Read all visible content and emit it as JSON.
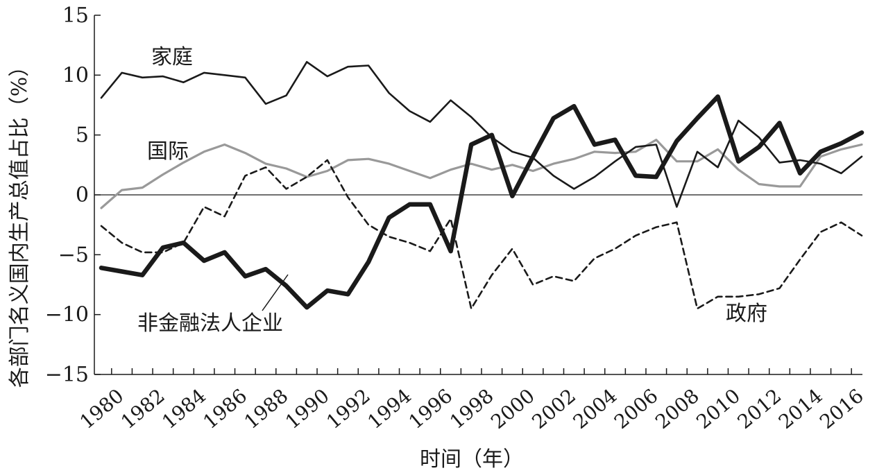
{
  "chart_data": {
    "type": "line",
    "title": "",
    "xlabel": "时间（年）",
    "ylabel": "各部门名义国内生产总值占比（%）",
    "ylim": [
      -15,
      15
    ],
    "xlim": [
      1979.5,
      2017
    ],
    "yticks": [
      15,
      10,
      5,
      0,
      -5,
      -10,
      -15
    ],
    "ytick_labels": [
      "15",
      "10",
      "5",
      "0",
      "−5",
      "−10",
      "−15"
    ],
    "xtick_labels": [
      "1980",
      "1982",
      "1984",
      "1986",
      "1988",
      "1990",
      "1992",
      "1994",
      "1996",
      "1998",
      "2000",
      "2002",
      "2004",
      "2006",
      "2008",
      "2010",
      "2012",
      "2014",
      "2016"
    ],
    "grid": false,
    "zero_line": true,
    "x": [
      1980,
      1981,
      1982,
      1983,
      1984,
      1985,
      1986,
      1987,
      1988,
      1989,
      1990,
      1991,
      1992,
      1993,
      1994,
      1995,
      1996,
      1997,
      1998,
      1999,
      2000,
      2001,
      2002,
      2003,
      2004,
      2005,
      2006,
      2007,
      2008,
      2009,
      2010,
      2011,
      2012,
      2013,
      2014,
      2015,
      2016,
      2017
    ],
    "series": [
      {
        "name": "家庭",
        "style": "thin-solid",
        "color": "#1a1a1a",
        "values": [
          8.1,
          10.2,
          9.8,
          9.9,
          9.4,
          10.2,
          10.0,
          9.8,
          7.6,
          8.3,
          11.1,
          9.9,
          10.7,
          10.8,
          8.5,
          7.0,
          6.1,
          7.9,
          6.5,
          4.8,
          3.6,
          3.1,
          1.6,
          0.5,
          1.5,
          2.8,
          4.0,
          4.2,
          -1.0,
          3.6,
          2.3,
          6.2,
          4.8,
          2.7,
          2.9,
          2.6,
          1.8,
          3.2
        ]
      },
      {
        "name": "国际",
        "style": "gray-solid",
        "color": "#999999",
        "values": [
          -1.1,
          0.4,
          0.6,
          1.7,
          2.7,
          3.6,
          4.2,
          3.5,
          2.6,
          2.2,
          1.5,
          2.0,
          2.9,
          3.0,
          2.6,
          2.0,
          1.4,
          2.1,
          2.6,
          2.1,
          2.5,
          2.0,
          2.6,
          3.0,
          3.6,
          3.5,
          3.6,
          4.6,
          2.8,
          2.8,
          3.8,
          2.1,
          0.9,
          0.7,
          0.7,
          3.2,
          3.8,
          4.2
        ]
      },
      {
        "name": "非金融法人企业",
        "style": "thick-solid",
        "color": "#1a1a1a",
        "values": [
          -6.1,
          -6.4,
          -6.7,
          -4.4,
          -4.0,
          -5.5,
          -4.8,
          -6.8,
          -6.2,
          -7.6,
          -9.4,
          -8.0,
          -8.3,
          -5.6,
          -1.9,
          -0.8,
          -0.8,
          -4.7,
          4.2,
          5.0,
          -0.1,
          3.2,
          6.4,
          7.4,
          4.2,
          4.6,
          1.6,
          1.5,
          4.5,
          6.4,
          8.2,
          2.8,
          4.0,
          6.0,
          1.8,
          3.6,
          4.3,
          5.2
        ]
      },
      {
        "name": "政府",
        "style": "dashed",
        "color": "#1a1a1a",
        "values": [
          -2.6,
          -4.0,
          -4.8,
          -4.8,
          -4.0,
          -1.0,
          -1.8,
          1.6,
          2.3,
          0.5,
          1.5,
          2.9,
          -0.2,
          -2.5,
          -3.5,
          -4.0,
          -4.7,
          -2.0,
          -9.5,
          -6.7,
          -4.5,
          -7.5,
          -6.8,
          -7.2,
          -5.3,
          -4.5,
          -3.4,
          -2.7,
          -2.3,
          -9.5,
          -8.5,
          -8.5,
          -8.3,
          -7.8,
          -5.4,
          -3.1,
          -2.3,
          -3.4
        ]
      }
    ],
    "annotations": [
      "家庭",
      "国际",
      "非金融法人企业",
      "政府"
    ]
  }
}
